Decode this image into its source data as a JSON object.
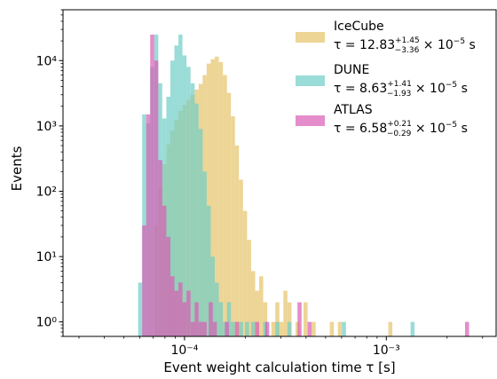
{
  "chart_data": {
    "type": "histogram",
    "title": "",
    "xlabel": "Event weight calculation time τ [s]",
    "ylabel": "Events",
    "x_scale": "log",
    "y_scale": "log",
    "xlim": [
      2.5e-05,
      0.0035
    ],
    "ylim": [
      0.6,
      60000
    ],
    "grid": false,
    "legend_position": "top-right",
    "x_ticks": [
      {
        "value": 0.0001,
        "label": "10⁻⁴"
      },
      {
        "value": 0.001,
        "label": "10⁻³"
      }
    ],
    "y_ticks": [
      {
        "value": 1,
        "label": "10⁰"
      },
      {
        "value": 10,
        "label": "10¹"
      },
      {
        "value": 100,
        "label": "10²"
      },
      {
        "value": 1000,
        "label": "10³"
      },
      {
        "value": 10000,
        "label": "10⁴"
      }
    ],
    "series": [
      {
        "name": "IceCube",
        "legend_line1": "IceCube",
        "legend_line2": "τ = 12.83⁺¹·⁴⁵₋₃.₃₆ × 10⁻⁵ s",
        "tau_value": "12.83",
        "tau_upper": "+1.45",
        "tau_lower": "−3.36",
        "color": "#e6c36a",
        "bins": [
          [
            7.08e-05,
            30
          ],
          [
            7.42e-05,
            110
          ],
          [
            7.76e-05,
            260
          ],
          [
            8.13e-05,
            520
          ],
          [
            8.51e-05,
            850
          ],
          [
            8.91e-05,
            1250
          ],
          [
            9.33e-05,
            1700
          ],
          [
            9.77e-05,
            2100
          ],
          [
            0.0001023,
            2500
          ],
          [
            0.0001072,
            3000
          ],
          [
            0.0001122,
            3600
          ],
          [
            0.0001175,
            4400
          ],
          [
            0.000123,
            6000
          ],
          [
            0.0001288,
            9000
          ],
          [
            0.0001349,
            10500
          ],
          [
            0.0001413,
            11500
          ],
          [
            0.000148,
            9500
          ],
          [
            0.000155,
            6000
          ],
          [
            0.0001622,
            3200
          ],
          [
            0.0001698,
            1400
          ],
          [
            0.0001778,
            500
          ],
          [
            0.0001862,
            150
          ],
          [
            0.000195,
            50
          ],
          [
            0.0002042,
            18
          ],
          [
            0.0002138,
            6
          ],
          [
            0.0002239,
            3
          ],
          [
            0.0002344,
            5
          ],
          [
            0.0002455,
            2
          ],
          [
            0.0002692,
            1
          ],
          [
            0.0002818,
            2
          ],
          [
            0.0002951,
            1
          ],
          [
            0.000309,
            3
          ],
          [
            0.0003236,
            2
          ],
          [
            0.0003548,
            1
          ],
          [
            0.000389,
            2
          ],
          [
            0.0004266,
            1
          ],
          [
            0.0005248,
            1
          ],
          [
            0.0005754,
            1
          ],
          [
            0.0010233,
            1
          ]
        ]
      },
      {
        "name": "DUNE",
        "legend_line1": "DUNE",
        "legend_line2": "τ = 8.63⁺¹·⁴¹₋₁.₉₃ × 10⁻⁵ s",
        "tau_value": "8.63",
        "tau_upper": "+1.41",
        "tau_lower": "−1.93",
        "color": "#6fcdc6",
        "bins": [
          [
            5.89e-05,
            4
          ],
          [
            6.17e-05,
            1500
          ],
          [
            6.46e-05,
            1100
          ],
          [
            6.76e-05,
            8000
          ],
          [
            7.08e-05,
            25000
          ],
          [
            7.41e-05,
            4500
          ],
          [
            7.76e-05,
            1300
          ],
          [
            8.13e-05,
            2800
          ],
          [
            8.51e-05,
            10000
          ],
          [
            8.91e-05,
            17000
          ],
          [
            9.33e-05,
            25000
          ],
          [
            9.77e-05,
            12000
          ],
          [
            0.0001023,
            8000
          ],
          [
            0.0001072,
            4500
          ],
          [
            0.0001122,
            2200
          ],
          [
            0.0001175,
            900
          ],
          [
            0.000123,
            200
          ],
          [
            0.0001288,
            60
          ],
          [
            0.0001349,
            10
          ],
          [
            0.0001413,
            4
          ],
          [
            0.000148,
            2
          ],
          [
            0.000155,
            1
          ],
          [
            0.0001622,
            2
          ],
          [
            0.0001698,
            1
          ],
          [
            0.0001862,
            1
          ],
          [
            0.0001995,
            1
          ],
          [
            0.0002138,
            1
          ],
          [
            0.0002455,
            1
          ],
          [
            0.0002818,
            1
          ],
          [
            0.0003236,
            1
          ],
          [
            0.0006026,
            1
          ],
          [
            0.0013183,
            1
          ]
        ]
      },
      {
        "name": "ATLAS",
        "legend_line1": "ATLAS",
        "legend_line2": "τ = 6.58⁺⁰·²¹₋₀.₂₉ × 10⁻⁵ s",
        "tau_value": "6.58",
        "tau_upper": "+0.21",
        "tau_lower": "−0.29",
        "color": "#d85cb3",
        "bins": [
          [
            6.17e-05,
            30
          ],
          [
            6.46e-05,
            1500
          ],
          [
            6.76e-05,
            25000
          ],
          [
            7.08e-05,
            10000
          ],
          [
            7.41e-05,
            300
          ],
          [
            7.76e-05,
            60
          ],
          [
            8.13e-05,
            20
          ],
          [
            8.51e-05,
            5
          ],
          [
            8.91e-05,
            3
          ],
          [
            9.33e-05,
            4
          ],
          [
            9.77e-05,
            2
          ],
          [
            0.0001023,
            3
          ],
          [
            0.0001072,
            1
          ],
          [
            0.0001122,
            2
          ],
          [
            0.0001175,
            1
          ],
          [
            0.000123,
            1
          ],
          [
            0.0001318,
            2
          ],
          [
            0.000138,
            1
          ],
          [
            0.0001585,
            1
          ],
          [
            0.0001778,
            1
          ],
          [
            0.0002239,
            1
          ],
          [
            0.0002512,
            1
          ],
          [
            0.0003631,
            2
          ],
          [
            0.0004074,
            1
          ],
          [
            0.0024547,
            1
          ]
        ]
      }
    ]
  }
}
